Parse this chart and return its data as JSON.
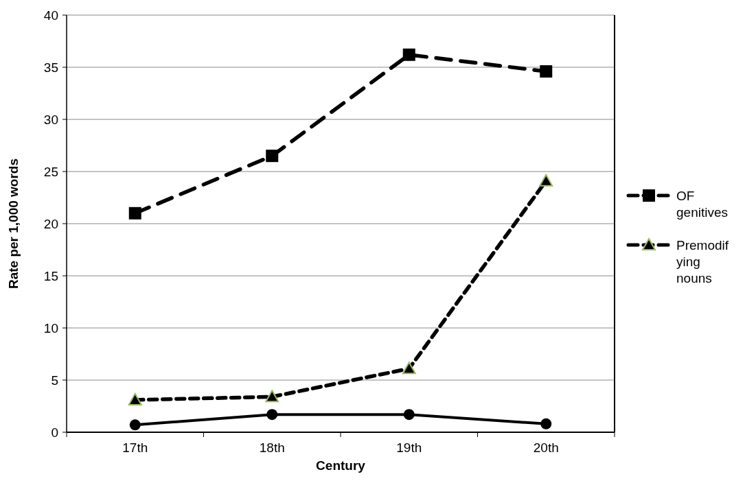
{
  "chart_data": {
    "type": "line",
    "xlabel": "Century",
    "ylabel": "Rate per 1,000 words",
    "categories": [
      "17th",
      "18th",
      "19th",
      "20th"
    ],
    "ylim": [
      0,
      40
    ],
    "yticks": [
      0,
      5,
      10,
      15,
      20,
      25,
      30,
      35,
      40
    ],
    "grid": "y",
    "legend": "right",
    "series": [
      {
        "name": "OF genitives",
        "color": "#000000",
        "values": [
          21,
          26.5,
          36.2,
          34.6
        ],
        "marker": "square",
        "line_style": "dashed"
      },
      {
        "name": "Premodifying nouns",
        "color": "#000000",
        "values": [
          3.1,
          3.4,
          6.1,
          24.1
        ],
        "marker": "triangle",
        "line_style": "dotted"
      },
      {
        "color": "#000000",
        "values": [
          0.7,
          1.7,
          1.7,
          0.8
        ],
        "marker": "circle",
        "line_style": "solid"
      }
    ]
  }
}
